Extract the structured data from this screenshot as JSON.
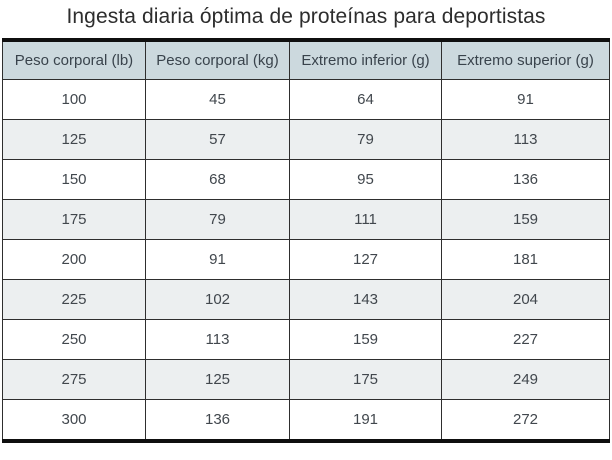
{
  "chart_data": {
    "type": "table",
    "title": "Ingesta diaria óptima de proteínas para deportistas",
    "columns": [
      "Peso corporal (lb)",
      "Peso corporal (kg)",
      "Extremo inferior (g)",
      "Extremo superior (g)"
    ],
    "rows": [
      [
        "100",
        "45",
        "64",
        "91"
      ],
      [
        "125",
        "57",
        "79",
        "113"
      ],
      [
        "150",
        "68",
        "95",
        "136"
      ],
      [
        "175",
        "79",
        "111",
        "159"
      ],
      [
        "200",
        "91",
        "127",
        "181"
      ],
      [
        "225",
        "102",
        "143",
        "204"
      ],
      [
        "250",
        "113",
        "159",
        "227"
      ],
      [
        "275",
        "125",
        "175",
        "249"
      ],
      [
        "300",
        "136",
        "191",
        "272"
      ]
    ],
    "layout": {
      "striped": true,
      "first_data_row_background": "white",
      "grid": "all-borders",
      "thick_top_bottom_border": true
    }
  },
  "colors": {
    "header_bg": "#ccd9de",
    "alt_row_bg": "#eceff0",
    "row_bg": "#ffffff",
    "inner_border": "#2e2e2e",
    "outer_border": "#0f0f0f",
    "title_text": "#2d2d2d",
    "header_text": "#39434c",
    "cell_text": "#41474d"
  }
}
